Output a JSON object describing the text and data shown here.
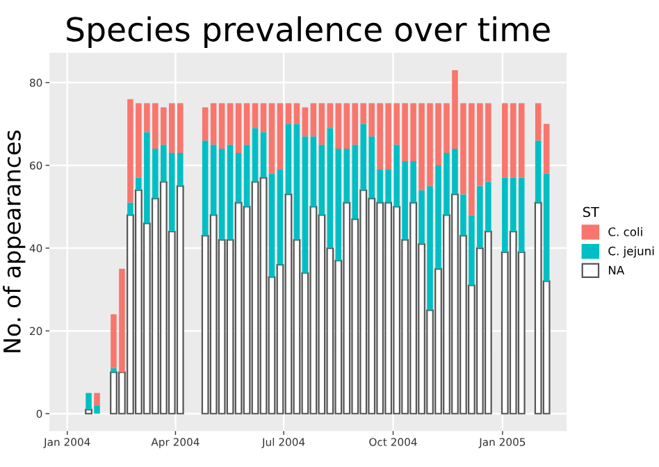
{
  "chart_data": {
    "type": "bar",
    "title": "Species prevalence over time",
    "ylabel": "No. of appearances",
    "legend_title": "ST",
    "stacked": true,
    "legend": "right",
    "grid": true,
    "x": [
      "2004-01-19",
      "2004-01-26",
      "2004-02-09",
      "2004-02-16",
      "2004-02-23",
      "2004-03-01",
      "2004-03-08",
      "2004-03-15",
      "2004-03-22",
      "2004-03-29",
      "2004-04-05",
      "2004-04-26",
      "2004-05-03",
      "2004-05-10",
      "2004-05-17",
      "2004-05-24",
      "2004-05-31",
      "2004-06-07",
      "2004-06-14",
      "2004-06-21",
      "2004-06-28",
      "2004-07-05",
      "2004-07-12",
      "2004-07-19",
      "2004-07-26",
      "2004-08-02",
      "2004-08-09",
      "2004-08-16",
      "2004-08-23",
      "2004-08-30",
      "2004-09-06",
      "2004-09-13",
      "2004-09-20",
      "2004-09-27",
      "2004-10-04",
      "2004-10-11",
      "2004-10-18",
      "2004-10-25",
      "2004-11-01",
      "2004-11-08",
      "2004-11-15",
      "2004-11-22",
      "2004-11-29",
      "2004-12-06",
      "2004-12-13",
      "2004-12-20",
      "2005-01-03",
      "2005-01-10",
      "2005-01-17",
      "2005-01-31",
      "2005-02-07"
    ],
    "series": [
      {
        "name": "NA",
        "color": "#ffffff",
        "values": [
          1,
          0,
          10,
          10,
          48,
          54,
          46,
          52,
          56,
          44,
          55,
          43,
          48,
          42,
          42,
          51,
          50,
          56,
          57,
          33,
          36,
          53,
          42,
          34,
          50,
          48,
          40,
          37,
          51,
          47,
          54,
          52,
          51,
          51,
          50,
          42,
          51,
          41,
          25,
          35,
          48,
          53,
          43,
          31,
          40,
          44,
          39,
          44,
          39,
          51,
          32
        ]
      },
      {
        "name": "C. jejuni",
        "color": "#00bfc4",
        "values": [
          4,
          2,
          1,
          0,
          3,
          3,
          22,
          12,
          9,
          19,
          8,
          23,
          17,
          22,
          23,
          12,
          15,
          13,
          11,
          25,
          23,
          17,
          28,
          33,
          17,
          17,
          29,
          27,
          13,
          18,
          16,
          15,
          8,
          8,
          15,
          19,
          10,
          13,
          30,
          25,
          15,
          11,
          10,
          17,
          15,
          12,
          18,
          13,
          18,
          15,
          26
        ]
      },
      {
        "name": "C. coli",
        "color": "#f8766d",
        "values": [
          0,
          3,
          13,
          25,
          25,
          18,
          7,
          11,
          9,
          12,
          12,
          8,
          10,
          11,
          10,
          12,
          10,
          6,
          7,
          17,
          16,
          5,
          5,
          7,
          8,
          10,
          6,
          11,
          11,
          10,
          5,
          8,
          16,
          16,
          10,
          14,
          14,
          21,
          20,
          15,
          12,
          19,
          22,
          27,
          20,
          19,
          18,
          18,
          18,
          9,
          12
        ]
      }
    ],
    "xlim": [
      "2003-12-17",
      "2005-02-24"
    ],
    "xticks": [
      {
        "value": "2004-01-01",
        "label": "Jan 2004"
      },
      {
        "value": "2004-04-01",
        "label": "Apr 2004"
      },
      {
        "value": "2004-07-01",
        "label": "Jul 2004"
      },
      {
        "value": "2004-10-01",
        "label": "Oct 2004"
      },
      {
        "value": "2005-01-01",
        "label": "Jan 2005"
      }
    ],
    "ylim": [
      -4.2,
      87.2
    ],
    "yticks": [
      0,
      20,
      40,
      60,
      80
    ]
  }
}
